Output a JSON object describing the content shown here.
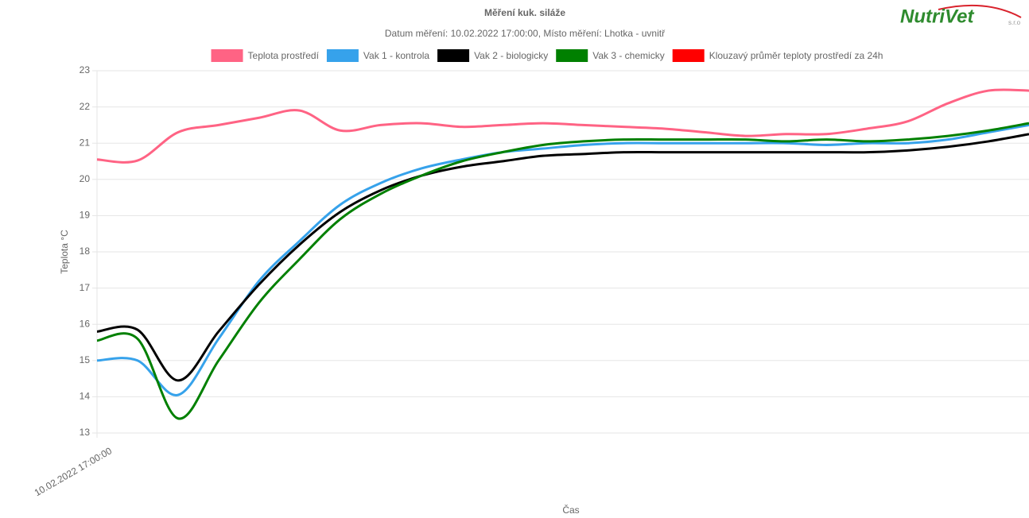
{
  "logo": {
    "name": "NutriVet",
    "suffix": "s.r.o"
  },
  "chart_data": {
    "type": "line",
    "title": "Měření kuk. siláže",
    "subtitle": "Datum měření: 10.02.2022 17:00:00, Místo měření: Lhotka - uvnitř",
    "x_label": "Čas",
    "y_label": "Teplota °C",
    "categories": [
      "10.02.2022 17:00:00",
      null,
      null,
      null,
      null,
      null,
      null,
      null,
      null,
      null,
      null,
      null,
      null,
      null,
      null,
      null,
      null,
      null,
      null,
      null,
      null,
      null,
      null,
      null
    ],
    "ylim": [
      13,
      23
    ],
    "yticks": [
      13,
      14,
      15,
      16,
      17,
      18,
      19,
      20,
      21,
      22,
      23
    ],
    "grid": true,
    "legend": "top",
    "series": [
      {
        "name": "Teplota prostředí",
        "color": "#ff6384",
        "values": [
          20.55,
          20.52,
          21.3,
          21.5,
          21.7,
          21.9,
          21.35,
          21.5,
          21.55,
          21.45,
          21.5,
          21.55,
          21.5,
          21.45,
          21.4,
          21.3,
          21.2,
          21.25,
          21.25,
          21.4,
          21.6,
          22.1,
          22.45,
          22.45
        ]
      },
      {
        "name": "Vak 1 - kontrola",
        "color": "#36a2eb",
        "values": [
          15.0,
          15.0,
          14.05,
          15.6,
          17.2,
          18.3,
          19.3,
          19.9,
          20.3,
          20.55,
          20.75,
          20.85,
          20.95,
          21.0,
          21.0,
          21.0,
          21.0,
          21.0,
          20.95,
          21.0,
          21.0,
          21.1,
          21.3,
          21.5
        ]
      },
      {
        "name": "Vak 2 - biologicky",
        "color": "#000000",
        "values": [
          15.8,
          15.85,
          14.45,
          15.8,
          17.1,
          18.2,
          19.1,
          19.7,
          20.1,
          20.35,
          20.5,
          20.65,
          20.7,
          20.75,
          20.75,
          20.75,
          20.75,
          20.75,
          20.75,
          20.75,
          20.8,
          20.9,
          21.05,
          21.25
        ]
      },
      {
        "name": "Vak 3 - chemicky",
        "color": "#008000",
        "values": [
          15.55,
          15.6,
          13.4,
          15.0,
          16.6,
          17.8,
          18.9,
          19.6,
          20.1,
          20.5,
          20.75,
          20.95,
          21.05,
          21.1,
          21.1,
          21.1,
          21.1,
          21.05,
          21.1,
          21.05,
          21.1,
          21.2,
          21.35,
          21.55
        ]
      },
      {
        "name": "Klouzavý průměr teploty prostředí za 24h",
        "color": "#ff0000",
        "values": [
          null,
          null,
          null,
          null,
          null,
          null,
          null,
          null,
          null,
          null,
          null,
          null,
          null,
          null,
          null,
          null,
          null,
          null,
          null,
          null,
          null,
          null,
          null,
          null
        ]
      }
    ]
  }
}
